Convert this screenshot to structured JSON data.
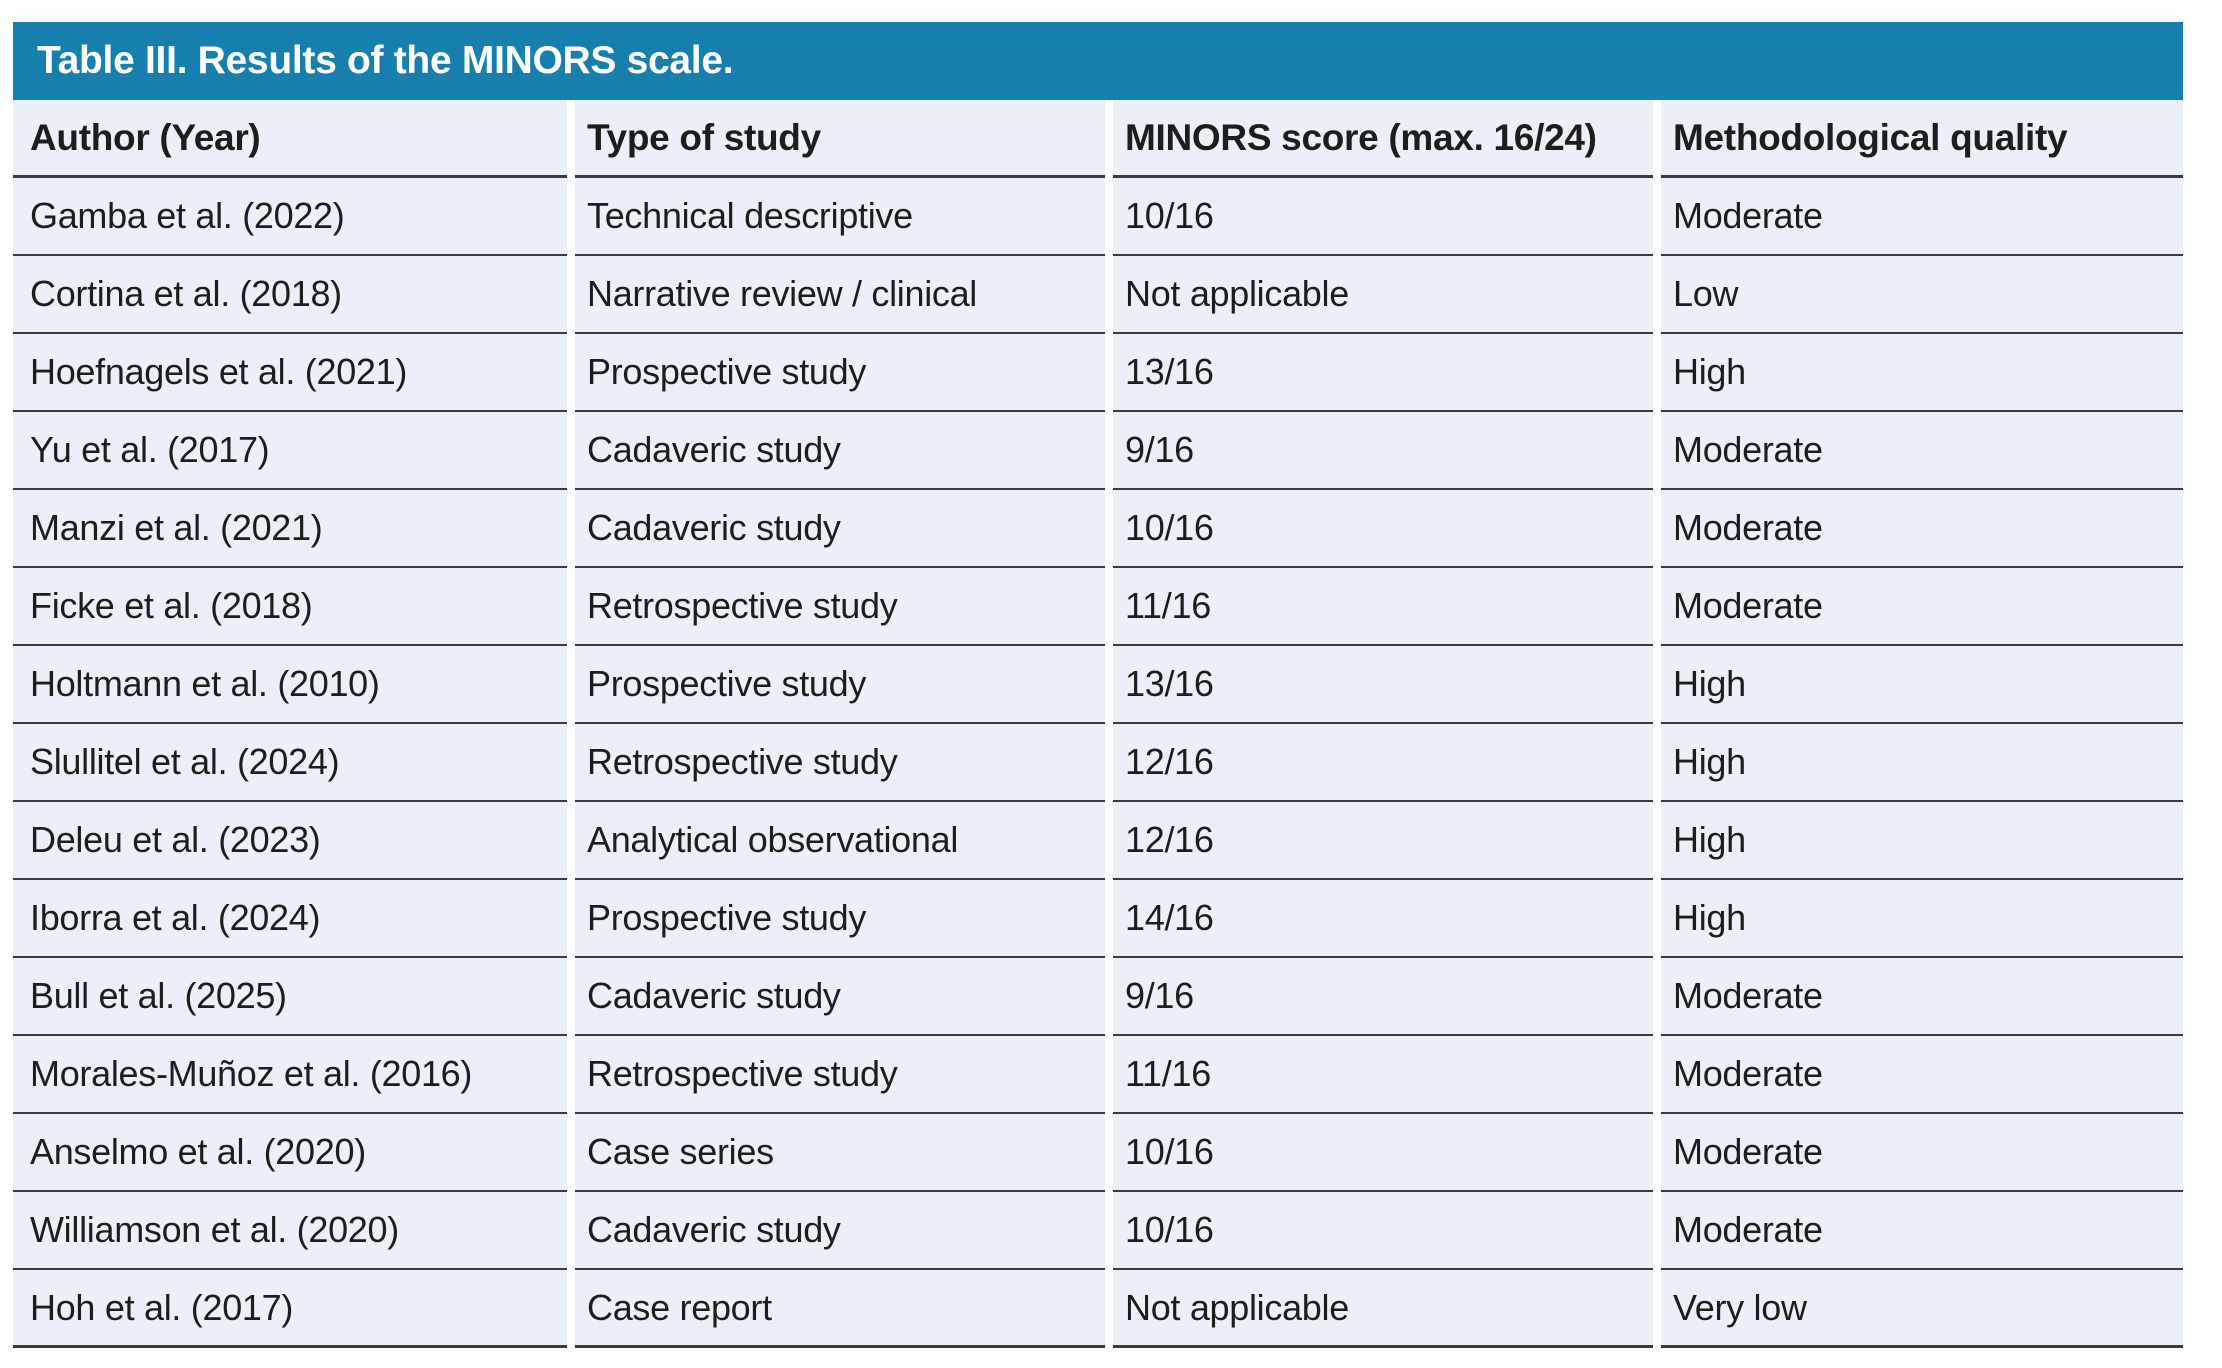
{
  "table": {
    "title": "Table III. Results of the MINORS scale.",
    "columns": [
      "Author (Year)",
      "Type of study",
      "MINORS score (max. 16/24)",
      "Methodological quality"
    ],
    "rows": [
      [
        "Gamba et al. (2022)",
        "Technical descriptive",
        "10/16",
        "Moderate"
      ],
      [
        "Cortina et al. (2018)",
        "Narrative review / clinical",
        "Not applicable",
        "Low"
      ],
      [
        "Hoefnagels et al. (2021)",
        "Prospective study",
        "13/16",
        "High"
      ],
      [
        "Yu et al. (2017)",
        "Cadaveric study",
        "9/16",
        "Moderate"
      ],
      [
        "Manzi et al. (2021)",
        "Cadaveric study",
        "10/16",
        "Moderate"
      ],
      [
        "Ficke et al. (2018)",
        "Retrospective study",
        "11/16",
        "Moderate"
      ],
      [
        "Holtmann et al. (2010)",
        "Prospective study",
        "13/16",
        "High"
      ],
      [
        "Slullitel et al. (2024)",
        "Retrospective study",
        "12/16",
        "High"
      ],
      [
        "Deleu et al. (2023)",
        "Analytical observational",
        "12/16",
        "High"
      ],
      [
        "Iborra et al. (2024)",
        "Prospective study",
        "14/16",
        "High"
      ],
      [
        "Bull et al. (2025)",
        "Cadaveric study",
        "9/16",
        "Moderate"
      ],
      [
        "Morales-Muñoz et al. (2016)",
        "Retrospective study",
        "11/16",
        "Moderate"
      ],
      [
        "Anselmo et al. (2020)",
        "Case series",
        "10/16",
        "Moderate"
      ],
      [
        "Williamson et al. (2020)",
        "Cadaveric study",
        "10/16",
        "Moderate"
      ],
      [
        "Hoh et al. (2017)",
        "Case report",
        "Not applicable",
        "Very low"
      ]
    ],
    "colors": {
      "accent": "#177fad",
      "row_bg": "#ebeff7",
      "line": "#3b3b3b",
      "text": "#1d1d1b",
      "title_text": "#ffffff"
    }
  }
}
